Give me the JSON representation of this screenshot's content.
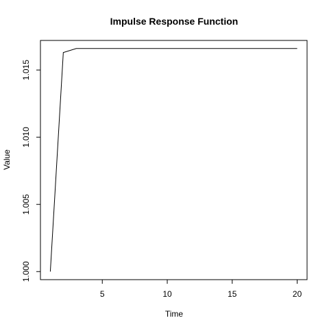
{
  "chart_data": {
    "type": "line",
    "title": "Impulse Response Function",
    "xlabel": "Time",
    "ylabel": "Value",
    "xlim": [
      0.24,
      20.76
    ],
    "ylim": [
      0.9994,
      1.0172
    ],
    "xticks": [
      5,
      10,
      15,
      20
    ],
    "yticks": [
      1.0,
      1.005,
      1.01,
      1.015
    ],
    "xtick_labels": [
      "5",
      "10",
      "15",
      "20"
    ],
    "ytick_labels": [
      "1.000",
      "1.005",
      "1.010",
      "1.015"
    ],
    "grid": false,
    "legend": "none",
    "line_color": "#000000",
    "series": [
      {
        "x": [
          1,
          2,
          3,
          4,
          5,
          6,
          7,
          8,
          9,
          10,
          11,
          12,
          13,
          14,
          15,
          16,
          17,
          18,
          19,
          20
        ],
        "values": [
          1.0,
          1.0163,
          1.0166,
          1.0166,
          1.0166,
          1.0166,
          1.0166,
          1.0166,
          1.0166,
          1.0166,
          1.0166,
          1.0166,
          1.0166,
          1.0166,
          1.0166,
          1.0166,
          1.0166,
          1.0166,
          1.0166,
          1.0166
        ]
      }
    ]
  }
}
